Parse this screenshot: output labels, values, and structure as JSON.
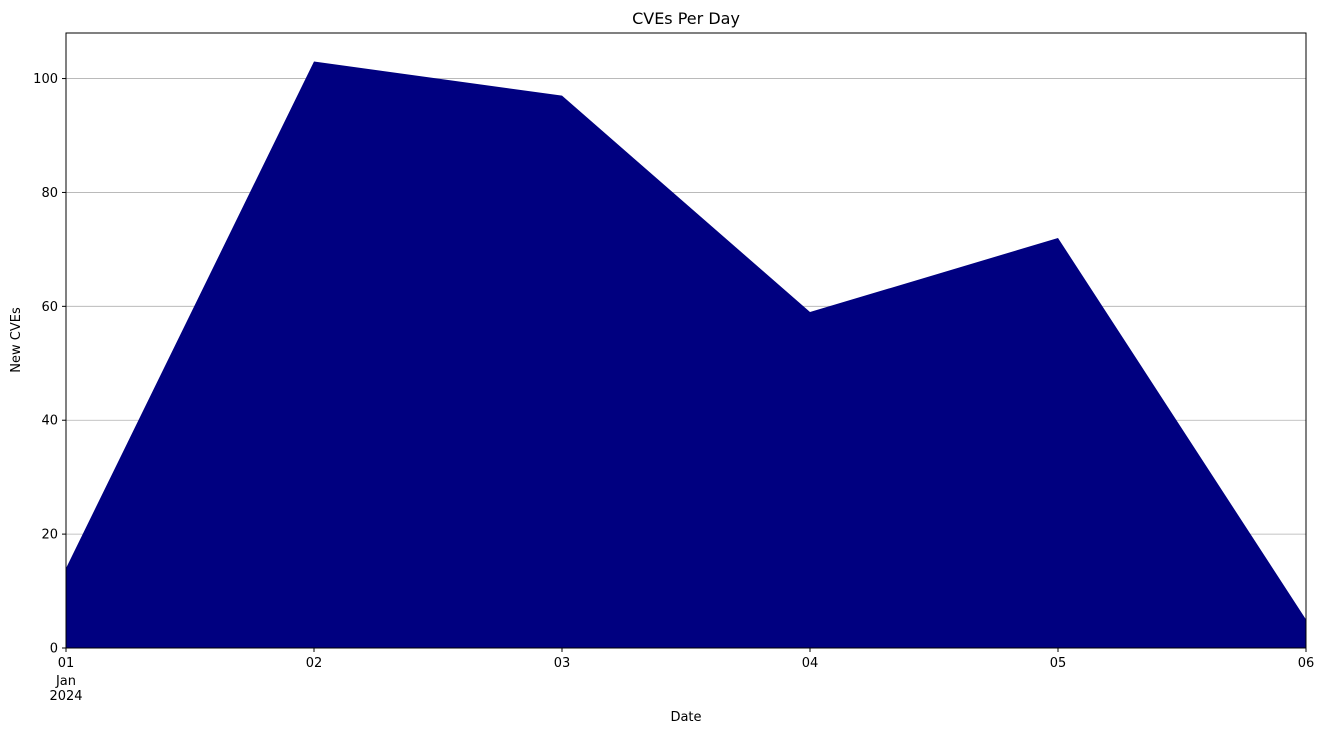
{
  "chart_data": {
    "type": "area",
    "title": "CVEs Per Day",
    "xlabel": "Date",
    "ylabel": "New CVEs",
    "x": [
      "2024-01-01",
      "2024-01-02",
      "2024-01-03",
      "2024-01-04",
      "2024-01-05",
      "2024-01-06"
    ],
    "x_tick_labels": [
      "01",
      "02",
      "03",
      "04",
      "05",
      "06"
    ],
    "x_tick_sublabels": {
      "month": "Jan",
      "year": "2024"
    },
    "values": [
      14,
      103,
      97,
      59,
      72,
      5
    ],
    "ylim": [
      0,
      108
    ],
    "y_ticks": [
      0,
      20,
      40,
      60,
      80,
      100
    ],
    "grid": "y",
    "fill_color": "#000080",
    "grid_color": "#b0b0b0"
  }
}
